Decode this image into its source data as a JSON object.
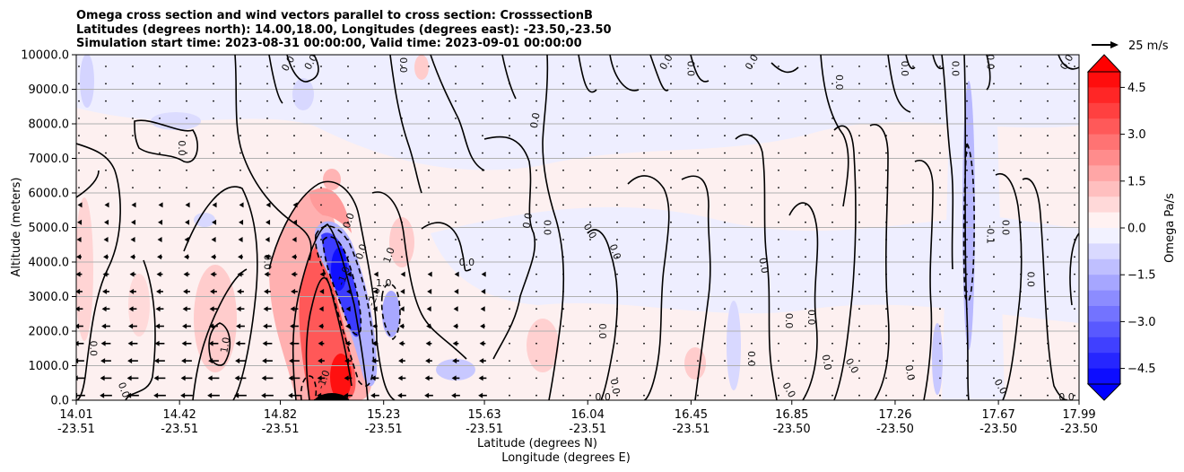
{
  "chart_data": {
    "type": "contour",
    "title_lines": [
      "Omega cross section and wind vectors parallel to cross section: CrosssectionB",
      "Latitudes (degrees north): 14.00,18.00, Longitudes (degrees east): -23.50,-23.50",
      "Simulation start time: 2023-08-31 00:00:00, Valid time: 2023-09-01 00:00:00"
    ],
    "ylabel": "Altitude (meters)",
    "xlabel_lat": "Latitude (degrees N)",
    "xlabel_lon": "Longitude (degrees E)",
    "ylim": [
      0,
      10000
    ],
    "y_ticks": [
      "0.0",
      "1000.0",
      "2000.0",
      "3000.0",
      "4000.0",
      "5000.0",
      "6000.0",
      "7000.0",
      "8000.0",
      "9000.0",
      "10000.0"
    ],
    "y_tick_values": [
      0,
      1000,
      2000,
      3000,
      4000,
      5000,
      6000,
      7000,
      8000,
      9000,
      10000
    ],
    "xlim": [
      14.01,
      17.99
    ],
    "x_ticks": [
      {
        "lat": "14.01",
        "lon": "-23.51",
        "value": 14.01
      },
      {
        "lat": "14.42",
        "lon": "-23.51",
        "value": 14.42
      },
      {
        "lat": "14.82",
        "lon": "-23.51",
        "value": 14.82
      },
      {
        "lat": "15.23",
        "lon": "-23.51",
        "value": 15.23
      },
      {
        "lat": "15.63",
        "lon": "-23.51",
        "value": 15.63
      },
      {
        "lat": "16.04",
        "lon": "-23.51",
        "value": 16.04
      },
      {
        "lat": "16.45",
        "lon": "-23.51",
        "value": 16.45
      },
      {
        "lat": "16.85",
        "lon": "-23.50",
        "value": 16.85
      },
      {
        "lat": "17.26",
        "lon": "-23.50",
        "value": 17.26
      },
      {
        "lat": "17.67",
        "lon": "-23.50",
        "value": 17.67
      },
      {
        "lat": "17.99",
        "lon": "-23.50",
        "value": 17.99
      }
    ],
    "grid": "horizontal",
    "colorbar": {
      "label": "Omega Pa/s",
      "range": [
        -5,
        5
      ],
      "ticks": [
        "4.5",
        "3.0",
        "1.5",
        "0.0",
        "−1.5",
        "−3.0",
        "−4.5"
      ],
      "tick_values": [
        4.5,
        3.0,
        1.5,
        0.0,
        -1.5,
        -3.0,
        -4.5
      ],
      "extend": "both",
      "colors": {
        "negative": "#0000ff",
        "neutral": "#ffffff",
        "positive": "#ff0000"
      }
    },
    "quiver_key": {
      "label": "25 m/s"
    },
    "contour_labels": [
      {
        "text": "0.0",
        "x": 14.43,
        "y": 7300,
        "rot": 90
      },
      {
        "text": "0.0",
        "x": 14.08,
        "y": 1500,
        "rot": 90
      },
      {
        "text": "0.0",
        "x": 14.2,
        "y": 300,
        "rot": 70
      },
      {
        "text": "1.0",
        "x": 14.6,
        "y": 1600,
        "rot": -80
      },
      {
        "text": "0.0",
        "x": 14.77,
        "y": 4000,
        "rot": 90
      },
      {
        "text": "0.0",
        "x": 14.85,
        "y": 9750,
        "rot": -60
      },
      {
        "text": "0.0",
        "x": 14.94,
        "y": 10000,
        "rot": -60
      },
      {
        "text": "0.0",
        "x": 15.31,
        "y": 9700,
        "rot": 90
      },
      {
        "text": "0.0",
        "x": 15.09,
        "y": 5200,
        "rot": -70
      },
      {
        "text": "0.0",
        "x": 15.14,
        "y": 4300,
        "rot": -70
      },
      {
        "text": "1.0",
        "x": 15.23,
        "y": 3400,
        "rot": 0
      },
      {
        "text": "1.0",
        "x": 15.25,
        "y": 4200,
        "rot": -70
      },
      {
        "text": "0.0",
        "x": 15.56,
        "y": 4000,
        "rot": 0
      },
      {
        "text": "-2.0",
        "x": 15.19,
        "y": 3000,
        "rot": -70
      },
      {
        "text": "-1.0",
        "x": 15.07,
        "y": 3600,
        "rot": -70
      },
      {
        "text": "-1.0",
        "x": 14.99,
        "y": 600,
        "rot": -70
      },
      {
        "text": "0.0",
        "x": 15.83,
        "y": 8100,
        "rot": -80
      },
      {
        "text": "0.0",
        "x": 15.8,
        "y": 5200,
        "rot": -80
      },
      {
        "text": "0.0",
        "x": 15.88,
        "y": 5000,
        "rot": 90
      },
      {
        "text": "0.0",
        "x": 16.05,
        "y": 4900,
        "rot": 60
      },
      {
        "text": "0.0",
        "x": 16.15,
        "y": 4300,
        "rot": 70
      },
      {
        "text": "0.0",
        "x": 16.1,
        "y": 2000,
        "rot": 90
      },
      {
        "text": "0.0",
        "x": 16.15,
        "y": 400,
        "rot": 80
      },
      {
        "text": "0.0",
        "x": 16.1,
        "y": 0,
        "rot": 0
      },
      {
        "text": "0.0",
        "x": 16.45,
        "y": 9600,
        "rot": 90
      },
      {
        "text": "0.0",
        "x": 16.35,
        "y": 9900,
        "rot": -60
      },
      {
        "text": "0.0",
        "x": 16.69,
        "y": 10000,
        "rot": -60
      },
      {
        "text": "0.0",
        "x": 16.74,
        "y": 3900,
        "rot": 80
      },
      {
        "text": "0.0",
        "x": 16.69,
        "y": 1200,
        "rot": 90
      },
      {
        "text": "0.0",
        "x": 16.84,
        "y": 2300,
        "rot": 90
      },
      {
        "text": "0.0",
        "x": 16.93,
        "y": 2400,
        "rot": 90
      },
      {
        "text": "0.0",
        "x": 16.84,
        "y": 300,
        "rot": 60
      },
      {
        "text": "0.0",
        "x": 17.04,
        "y": 9200,
        "rot": 90
      },
      {
        "text": "0.0",
        "x": 16.99,
        "y": 1100,
        "rot": 80
      },
      {
        "text": "0.0",
        "x": 17.09,
        "y": 1000,
        "rot": 60
      },
      {
        "text": "0.0",
        "x": 17.3,
        "y": 9600,
        "rot": 90
      },
      {
        "text": "0.0",
        "x": 17.5,
        "y": 9600,
        "rot": 90
      },
      {
        "text": "0.0",
        "x": 17.32,
        "y": 800,
        "rot": 80
      },
      {
        "text": "-0.1",
        "x": 17.64,
        "y": 4800,
        "rot": 90
      },
      {
        "text": "0.0",
        "x": 17.7,
        "y": 5000,
        "rot": 90
      },
      {
        "text": "0.0",
        "x": 17.64,
        "y": 9800,
        "rot": 90
      },
      {
        "text": "0.0",
        "x": 17.8,
        "y": 3500,
        "rot": 90
      },
      {
        "text": "0.0",
        "x": 17.68,
        "y": 400,
        "rot": 60
      },
      {
        "text": "0.0",
        "x": 17.94,
        "y": 10000,
        "rot": -60
      },
      {
        "text": "0.0",
        "x": 17.94,
        "y": 100,
        "rot": 0
      }
    ]
  }
}
